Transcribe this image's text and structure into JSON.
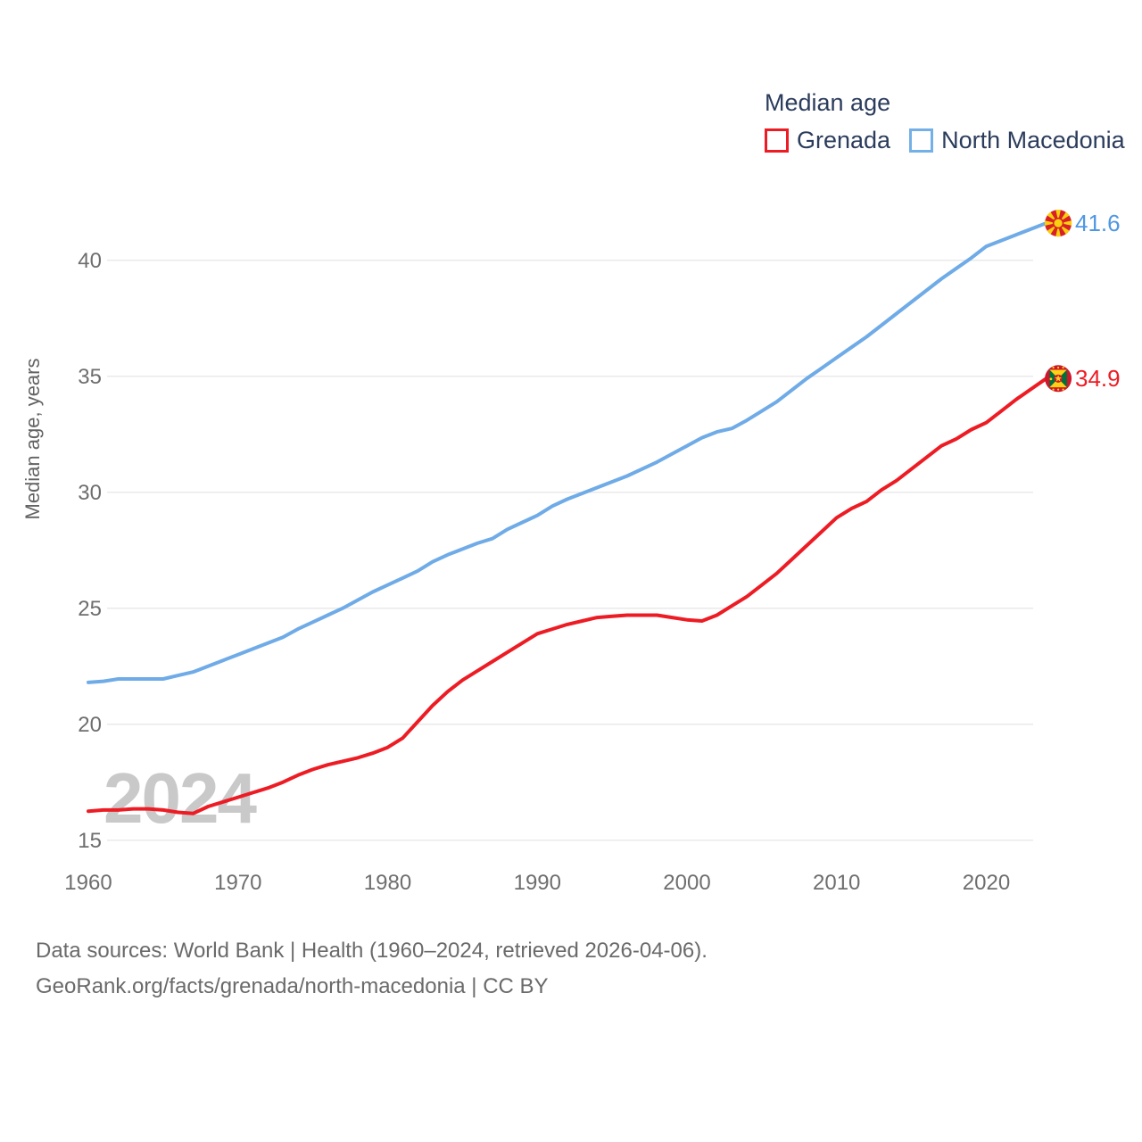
{
  "legend": {
    "title": "Median age",
    "items": [
      {
        "label": "Grenada",
        "color": "#ed1c24"
      },
      {
        "label": "North Macedonia",
        "color": "#74b0e8"
      }
    ]
  },
  "watermark": "2024",
  "y_axis": {
    "title": "Median age, years",
    "ticks": [
      40,
      35,
      30,
      25,
      20,
      15
    ]
  },
  "x_axis": {
    "ticks": [
      1960,
      1970,
      1980,
      1990,
      2000,
      2010,
      2020
    ]
  },
  "footer": {
    "line1": "Data sources: World Bank | Health (1960–2024, retrieved 2026-04-06).",
    "line2": "GeoRank.org/facts/grenada/north-macedonia | CC BY"
  },
  "chart_data": {
    "type": "line",
    "title": "Median age",
    "xlabel": "",
    "ylabel": "Median age, years",
    "xlim": [
      1960,
      2024
    ],
    "ylim": [
      15,
      42.5
    ],
    "grid": true,
    "legend_position": "top-right",
    "x": [
      1960,
      1961,
      1962,
      1963,
      1964,
      1965,
      1966,
      1967,
      1968,
      1969,
      1970,
      1971,
      1972,
      1973,
      1974,
      1975,
      1976,
      1977,
      1978,
      1979,
      1980,
      1981,
      1982,
      1983,
      1984,
      1985,
      1986,
      1987,
      1988,
      1989,
      1990,
      1991,
      1992,
      1993,
      1994,
      1995,
      1996,
      1997,
      1998,
      1999,
      2000,
      2001,
      2002,
      2003,
      2004,
      2005,
      2006,
      2007,
      2008,
      2009,
      2010,
      2011,
      2012,
      2013,
      2014,
      2015,
      2016,
      2017,
      2018,
      2019,
      2020,
      2021,
      2022,
      2023,
      2024
    ],
    "series": [
      {
        "name": "Grenada",
        "color": "#ed1c24",
        "label_color": "#ed1c24",
        "flag": "grenada",
        "end_value": 34.9,
        "end_label": "34.9",
        "values": [
          16.25,
          16.3,
          16.3,
          16.35,
          16.35,
          16.3,
          16.2,
          16.15,
          16.45,
          16.65,
          16.85,
          17.05,
          17.25,
          17.5,
          17.8,
          18.05,
          18.25,
          18.4,
          18.55,
          18.75,
          19.0,
          19.4,
          20.1,
          20.8,
          21.4,
          21.9,
          22.3,
          22.7,
          23.1,
          23.5,
          23.9,
          24.1,
          24.3,
          24.45,
          24.6,
          24.65,
          24.7,
          24.7,
          24.7,
          24.6,
          24.5,
          24.45,
          24.7,
          25.1,
          25.5,
          26.0,
          26.5,
          27.1,
          27.7,
          28.3,
          28.9,
          29.3,
          29.6,
          30.1,
          30.5,
          31.0,
          31.5,
          32.0,
          32.3,
          32.7,
          33.0,
          33.5,
          34.0,
          34.45,
          34.9
        ]
      },
      {
        "name": "North Macedonia",
        "color": "#6fabe7",
        "label_color": "#4f97e3",
        "flag": "north-macedonia",
        "end_value": 41.6,
        "end_label": "41.6",
        "values": [
          21.8,
          21.85,
          21.95,
          21.95,
          21.95,
          21.95,
          22.1,
          22.25,
          22.5,
          22.75,
          23.0,
          23.25,
          23.5,
          23.75,
          24.1,
          24.4,
          24.7,
          25.0,
          25.35,
          25.7,
          26.0,
          26.3,
          26.6,
          27.0,
          27.3,
          27.55,
          27.8,
          28.0,
          28.4,
          28.7,
          29.0,
          29.4,
          29.7,
          29.95,
          30.2,
          30.45,
          30.7,
          31.0,
          31.3,
          31.65,
          32.0,
          32.35,
          32.6,
          32.75,
          33.1,
          33.5,
          33.9,
          34.4,
          34.9,
          35.35,
          35.8,
          36.25,
          36.7,
          37.2,
          37.7,
          38.2,
          38.7,
          39.2,
          39.65,
          40.1,
          40.6,
          40.85,
          41.1,
          41.35,
          41.6
        ]
      }
    ]
  }
}
